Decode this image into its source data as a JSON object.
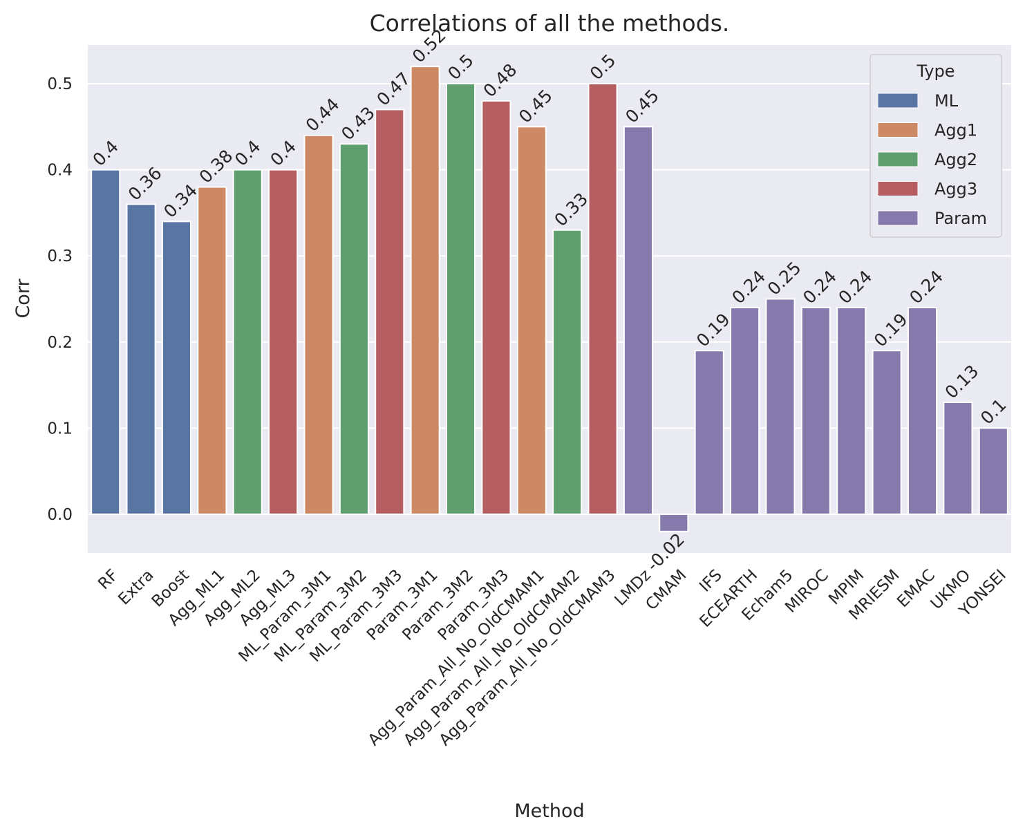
{
  "chart_data": {
    "type": "bar",
    "title": "Correlations of all the methods.",
    "xlabel": "Method",
    "ylabel": "Corr",
    "ylim": [
      -0.045,
      0.545
    ],
    "yticks": [
      0.0,
      0.1,
      0.2,
      0.3,
      0.4,
      0.5
    ],
    "ytick_labels": [
      "0.0",
      "0.1",
      "0.2",
      "0.3",
      "0.4",
      "0.5"
    ],
    "grid": true,
    "legend": {
      "title": "Type",
      "placement": "top-right",
      "entries": [
        {
          "label": "ML",
          "color": "#5875a4"
        },
        {
          "label": "Agg1",
          "color": "#cc8963"
        },
        {
          "label": "Agg2",
          "color": "#5f9e6e"
        },
        {
          "label": "Agg3",
          "color": "#b55d60"
        },
        {
          "label": "Param",
          "color": "#857aab"
        }
      ]
    },
    "bars": [
      {
        "category": "RF",
        "value": 0.4,
        "label": "0.4",
        "type": "ML"
      },
      {
        "category": "Extra",
        "value": 0.36,
        "label": "0.36",
        "type": "ML"
      },
      {
        "category": "Boost",
        "value": 0.34,
        "label": "0.34",
        "type": "ML"
      },
      {
        "category": "Agg_ML1",
        "value": 0.38,
        "label": "0.38",
        "type": "Agg1"
      },
      {
        "category": "Agg_ML2",
        "value": 0.4,
        "label": "0.4",
        "type": "Agg2"
      },
      {
        "category": "Agg_ML3",
        "value": 0.4,
        "label": "0.4",
        "type": "Agg3"
      },
      {
        "category": "ML_Param_3M1",
        "value": 0.44,
        "label": "0.44",
        "type": "Agg1"
      },
      {
        "category": "ML_Param_3M2",
        "value": 0.43,
        "label": "0.43",
        "type": "Agg2"
      },
      {
        "category": "ML_Param_3M3",
        "value": 0.47,
        "label": "0.47",
        "type": "Agg3"
      },
      {
        "category": "Param_3M1",
        "value": 0.52,
        "label": "0.52",
        "type": "Agg1"
      },
      {
        "category": "Param_3M2",
        "value": 0.5,
        "label": "0.5",
        "type": "Agg2"
      },
      {
        "category": "Param_3M3",
        "value": 0.48,
        "label": "0.48",
        "type": "Agg3"
      },
      {
        "category": "Agg_Param_All_No_OldCMAM1",
        "value": 0.45,
        "label": "0.45",
        "type": "Agg1"
      },
      {
        "category": "Agg_Param_All_No_OldCMAM2",
        "value": 0.33,
        "label": "0.33",
        "type": "Agg2"
      },
      {
        "category": "Agg_Param_All_No_OldCMAM3",
        "value": 0.5,
        "label": "0.5",
        "type": "Agg3"
      },
      {
        "category": "LMDz",
        "value": 0.45,
        "label": "0.45",
        "type": "Param"
      },
      {
        "category": "CMAM",
        "value": -0.02,
        "label": "-0.02",
        "type": "Param"
      },
      {
        "category": "IFS",
        "value": 0.19,
        "label": "0.19",
        "type": "Param"
      },
      {
        "category": "ECEARTH",
        "value": 0.24,
        "label": "0.24",
        "type": "Param"
      },
      {
        "category": "Echam5",
        "value": 0.25,
        "label": "0.25",
        "type": "Param"
      },
      {
        "category": "MIROC",
        "value": 0.24,
        "label": "0.24",
        "type": "Param"
      },
      {
        "category": "MPIM",
        "value": 0.24,
        "label": "0.24",
        "type": "Param"
      },
      {
        "category": "MRIESM",
        "value": 0.19,
        "label": "0.19",
        "type": "Param"
      },
      {
        "category": "EMAC",
        "value": 0.24,
        "label": "0.24",
        "type": "Param"
      },
      {
        "category": "UKMO",
        "value": 0.13,
        "label": "0.13",
        "type": "Param"
      },
      {
        "category": "YONSEI",
        "value": 0.1,
        "label": "0.1",
        "type": "Param"
      }
    ]
  }
}
